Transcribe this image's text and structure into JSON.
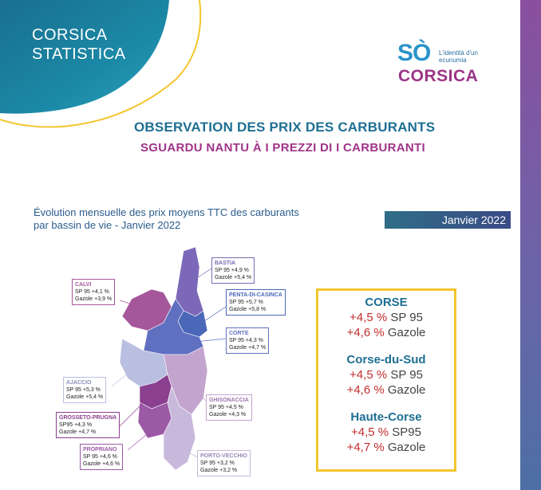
{
  "header": {
    "brand_line1": "CORSICA",
    "brand_line2": "STATISTICA",
    "logo_mark": "SÒ",
    "logo_tagline": "L'identità d'un ecunumia",
    "logo_word": "CORSICA",
    "title": "OBSERVATION DES PRIX DES CARBURANTS",
    "subtitle": "SGUARDU NANTU À I PREZZI DI I CARBURANTI"
  },
  "chart_caption": {
    "line1": "Évolution mensuelle des prix moyens TTC des carburants",
    "line2": "par bassin de vie - Janvier 2022"
  },
  "date_badge": "Janvier 2022",
  "map_labels": [
    {
      "name": "BASTIA",
      "sp_label": "SP 95",
      "sp": "+4,9 %",
      "gazole_label": "Gazole",
      "gazole": "+5,4 %",
      "color": "#7b68b8"
    },
    {
      "name": "CALVI",
      "sp_label": "SP 95",
      "sp": "+4,1 %",
      "gazole_label": "Gazole",
      "gazole": "+3,9 %",
      "color": "#a6579b"
    },
    {
      "name": "PENTA-DI-CASINCA",
      "sp_label": "SP 95",
      "sp": "+5,7 %",
      "gazole_label": "Gazole",
      "gazole": "+5,8 %",
      "color": "#4a67b8"
    },
    {
      "name": "CORTE",
      "sp_label": "SP 95",
      "sp": "+4,3 %",
      "gazole_label": "Gazole",
      "gazole": "+4,7 %",
      "color": "#5f70c0"
    },
    {
      "name": "AJACCIO",
      "sp_label": "SP 95",
      "sp": "+5,3 %",
      "gazole_label": "Gazole",
      "gazole": "+5,4 %",
      "color": "#b9bfe0"
    },
    {
      "name": "GHISONACCIA",
      "sp_label": "SP 95",
      "sp": "+4,5 %",
      "gazole_label": "Gazole",
      "gazole": "+4,3 %",
      "color": "#c3a4cf"
    },
    {
      "name": "GROSSETO-PRUGNA",
      "sp_label": "SP95",
      "sp": "+4,3 %",
      "gazole_label": "Gazole",
      "gazole": "+4,7 %",
      "color": "#8b3f8f"
    },
    {
      "name": "PROPRIANO",
      "sp_label": "SP 95",
      "sp": "+4,6 %",
      "gazole_label": "Gazole",
      "gazole": "+4,6 %",
      "color": "#9c5aa6"
    },
    {
      "name": "PORTO-VECCHIO",
      "sp_label": "SP 95",
      "sp": "+3,2 %",
      "gazole_label": "Gazole",
      "gazole": "+3,2 %",
      "color": "#c8b8dc"
    }
  ],
  "summary": [
    {
      "title": "CORSE",
      "sp_pct": "+4,5 %",
      "sp_label": "SP 95",
      "gazole_pct": "+4,6 %",
      "gazole_label": "Gazole"
    },
    {
      "title": "Corse-du-Sud",
      "sp_pct": "+4,5 %",
      "sp_label": "SP 95",
      "gazole_pct": "+4,6 %",
      "gazole_label": "Gazole"
    },
    {
      "title": "Haute-Corse",
      "sp_pct": "+4,5 %",
      "sp_label": "SP95",
      "gazole_pct": "+4,7 %",
      "gazole_label": "Gazole"
    }
  ],
  "colors": {
    "title_blue": "#1e6f93",
    "title_purple": "#a03489",
    "accent_yellow": "#f5c52e",
    "increase_red": "#c32d2d",
    "header_teal": "#1b7d96"
  }
}
